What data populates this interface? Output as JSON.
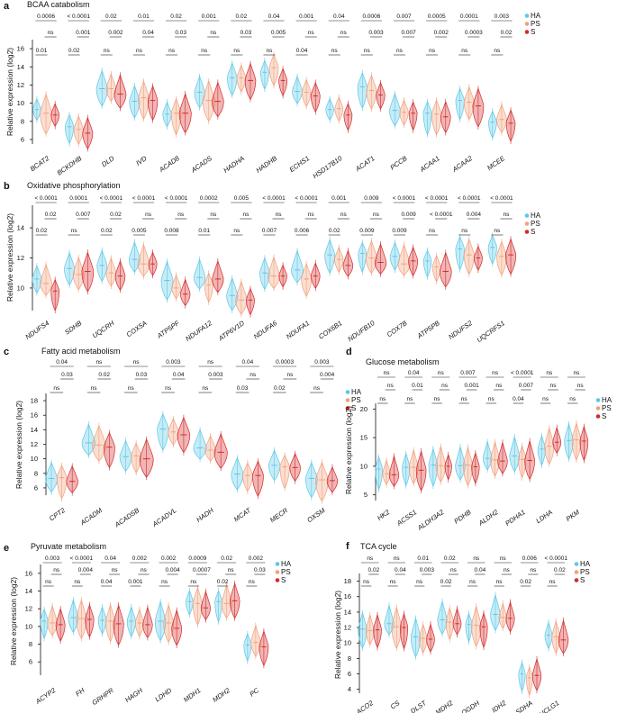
{
  "legend": {
    "groups": [
      "HA",
      "PS",
      "S"
    ],
    "colors": {
      "HA": "#5cc8e8",
      "PS": "#f2a07b",
      "S": "#d42a2a"
    }
  },
  "ylabel": "Relative expression (log2)",
  "chart_data": [
    {
      "type": "violin",
      "letter": "a",
      "title": "BCAA catabolism",
      "ylim": [
        5.5,
        17
      ],
      "yticks": [
        6,
        8,
        10,
        12,
        14,
        16
      ],
      "categories": [
        "BCAT2",
        "BCKDHB",
        "DLD",
        "IVD",
        "ACAD8",
        "ACADS",
        "HADHA",
        "HADHB",
        "ECHS1",
        "HSD17B10",
        "ACAT1",
        "PCCB",
        "ACAA1",
        "ACAA2",
        "MCEE"
      ],
      "series": [
        {
          "name": "HA",
          "values": [
            9.3,
            7.4,
            11.6,
            10.2,
            8.8,
            11.2,
            12.8,
            13.4,
            11.3,
            9.3,
            11.8,
            9.2,
            8.9,
            10.3,
            7.9
          ]
        },
        {
          "name": "PS",
          "values": [
            8.9,
            7.1,
            11.6,
            10.6,
            8.9,
            10.3,
            12.8,
            13.9,
            11.2,
            9.4,
            11.4,
            9.0,
            8.8,
            10.1,
            8.2
          ]
        },
        {
          "name": "S",
          "values": [
            8.7,
            6.7,
            11.0,
            10.3,
            8.9,
            10.2,
            12.5,
            12.5,
            10.8,
            8.7,
            10.9,
            8.9,
            8.5,
            9.7,
            7.8
          ]
        }
      ],
      "pvalues": {
        "HA_vs_S": [
          "0.0006",
          "< 0.0001",
          "0.02",
          "0.01",
          "0.02",
          "0.001",
          "0.02",
          "0.04",
          "0.001",
          "0.04",
          "0.0006",
          "0.007",
          "0.0005",
          "0.0001",
          "0.003"
        ],
        "PS_vs_S": [
          "ns",
          "0.001",
          "0.002",
          "0.04",
          "0.03",
          "ns",
          "0.03",
          "0.005",
          "ns",
          "ns",
          "0.003",
          "0.007",
          "0.002",
          "0.0003",
          "0.02"
        ],
        "HA_vs_PS": [
          "0.01",
          "0.02",
          "ns",
          "ns",
          "ns",
          "ns",
          "ns",
          "ns",
          "0.04",
          "ns",
          "ns",
          "ns",
          "ns",
          "ns",
          "ns"
        ]
      }
    },
    {
      "type": "violin",
      "letter": "b",
      "title": "Oxidative phosphorylation",
      "ylim": [
        8.5,
        15.5
      ],
      "yticks": [
        10,
        12,
        14
      ],
      "categories": [
        "NDUFS4",
        "SDHB",
        "UQCRH",
        "COX5A",
        "ATP5PF",
        "NDUFA12",
        "ATP6V1D",
        "NDUFA6",
        "NDUFA1",
        "COX6B1",
        "NDUFB10",
        "COX7B",
        "ATP5PB",
        "NDUFS2",
        "UQCRFS1"
      ],
      "series": [
        {
          "name": "HA",
          "values": [
            10.6,
            11.3,
            11.5,
            11.9,
            10.5,
            10.7,
            9.5,
            11.0,
            11.2,
            12.2,
            12.3,
            12.1,
            11.8,
            12.6,
            12.7
          ]
        },
        {
          "name": "PS",
          "values": [
            10.3,
            10.9,
            11.0,
            11.6,
            10.0,
            10.2,
            9.2,
            10.8,
            10.6,
            11.9,
            12.0,
            11.6,
            11.4,
            12.2,
            12.1
          ]
        },
        {
          "name": "S",
          "values": [
            9.8,
            11.1,
            10.8,
            11.6,
            9.6,
            10.6,
            9.2,
            10.8,
            10.8,
            11.5,
            11.7,
            11.8,
            11.1,
            12.0,
            12.2
          ]
        }
      ],
      "pvalues": {
        "HA_vs_S": [
          "< 0.0001",
          "0.0001",
          "< 0.0001",
          "< 0.0001",
          "< 0.0001",
          "0.0002",
          "0.005",
          "< 0.0001",
          "< 0.0001",
          "0.001",
          "0.009",
          "< 0.0001",
          "< 0.0001",
          "< 0.0001",
          "< 0.0001"
        ],
        "PS_vs_S": [
          "0.02",
          "0.007",
          "0.02",
          "ns",
          "ns",
          "ns",
          "ns",
          "ns",
          "ns",
          "ns",
          "ns",
          "0.009",
          "< 0.0001",
          "0.004",
          "ns"
        ],
        "HA_vs_PS": [
          "0.02",
          "ns",
          "0.02",
          "0.005",
          "0.008",
          "0.01",
          "ns",
          "0.007",
          "0.006",
          "0.02",
          "0.009",
          "0.009",
          "ns",
          "ns",
          "ns"
        ]
      }
    },
    {
      "type": "violin",
      "letter": "c",
      "title": "Fatty acid metabolism",
      "ylim": [
        5,
        19
      ],
      "yticks": [
        6,
        8,
        10,
        12,
        14,
        16,
        18
      ],
      "categories": [
        "CPT2",
        "ACADM",
        "ACADSB",
        "ACADVL",
        "HADH",
        "MCAT",
        "MECR",
        "OXSM"
      ],
      "series": [
        {
          "name": "HA",
          "values": [
            7.3,
            12.2,
            10.3,
            14.1,
            11.5,
            7.9,
            9.1,
            7.3
          ]
        },
        {
          "name": "PS",
          "values": [
            7.4,
            11.9,
            10.4,
            13.7,
            11.2,
            7.7,
            8.9,
            7.1
          ]
        },
        {
          "name": "S",
          "values": [
            6.9,
            11.6,
            10.0,
            13.3,
            10.9,
            7.7,
            8.8,
            7.0
          ]
        }
      ],
      "pvalues": {
        "HA_vs_S": [
          "0.04",
          "ns",
          "ns",
          "0.003",
          "ns",
          "0.04",
          "0.0003",
          "0.003"
        ],
        "PS_vs_S": [
          "0.03",
          "0.02",
          "0.03",
          "0.04",
          "0.003",
          "ns",
          "ns",
          "0.004"
        ],
        "HA_vs_PS": [
          "ns",
          "ns",
          "ns",
          "ns",
          "ns",
          "0.03",
          "0.02",
          "ns"
        ]
      }
    },
    {
      "type": "violin",
      "letter": "d",
      "title": "Glucose metabolism",
      "ylim": [
        4,
        21
      ],
      "yticks": [
        5,
        10,
        15,
        20
      ],
      "categories": [
        "HK2",
        "ACSS1",
        "ALDH3A2",
        "PDHB",
        "ALDH2",
        "PDHA1",
        "LDHA",
        "PKM"
      ],
      "series": [
        {
          "name": "HA",
          "values": [
            9.5,
            9.8,
            10.2,
            10.1,
            11.4,
            11.8,
            13.0,
            14.5
          ]
        },
        {
          "name": "PS",
          "values": [
            8.7,
            9.8,
            10.1,
            10.2,
            11.1,
            11.2,
            13.5,
            14.6
          ]
        },
        {
          "name": "S",
          "values": [
            8.5,
            9.3,
            10.0,
            9.9,
            10.9,
            11.0,
            14.2,
            14.4
          ]
        }
      ],
      "pvalues": {
        "HA_vs_S": [
          "ns",
          "0.04",
          "ns",
          "0.007",
          "ns",
          "< 0.0001",
          "ns",
          "ns"
        ],
        "PS_vs_S": [
          "ns",
          "0.01",
          "ns",
          "0.001",
          "ns",
          "0.007",
          "ns",
          "ns"
        ],
        "HA_vs_PS": [
          "ns",
          "ns",
          "ns",
          "ns",
          "ns",
          "0.04",
          "ns",
          "ns"
        ]
      }
    },
    {
      "type": "violin",
      "letter": "e",
      "title": "Pyruvate metabolism",
      "ylim": [
        4.5,
        17
      ],
      "yticks": [
        6,
        8,
        10,
        12,
        14,
        16
      ],
      "categories": [
        "ACYP2",
        "FH",
        "GRHPR",
        "HAGH",
        "LDHD",
        "MDH1",
        "MDH2",
        "PC"
      ],
      "series": [
        {
          "name": "HA",
          "values": [
            10.6,
            11.0,
            10.7,
            10.6,
            10.6,
            12.8,
            12.8,
            7.9
          ]
        },
        {
          "name": "PS",
          "values": [
            10.4,
            10.9,
            10.6,
            10.4,
            10.4,
            12.6,
            12.6,
            8.2
          ]
        },
        {
          "name": "S",
          "values": [
            10.2,
            10.8,
            10.3,
            10.2,
            9.8,
            12.1,
            12.9,
            7.7
          ]
        }
      ],
      "pvalues": {
        "HA_vs_S": [
          "0.003",
          "< 0.0001",
          "0.04",
          "0.002",
          "0.002",
          "0.0009",
          "0.02",
          "0.002"
        ],
        "PS_vs_S": [
          "ns",
          "0.004",
          "ns",
          "ns",
          "0.004",
          "0.0007",
          "ns",
          "0.03"
        ],
        "HA_vs_PS": [
          "ns",
          "ns",
          "0.04",
          "0.001",
          "ns",
          "ns",
          "0.02",
          "ns"
        ]
      }
    },
    {
      "type": "violin",
      "letter": "f",
      "title": "TCA cycle",
      "ylim": [
        3.5,
        19
      ],
      "yticks": [
        4,
        6,
        8,
        10,
        12,
        14,
        16,
        18
      ],
      "categories": [
        "ACO2",
        "CS",
        "DLST",
        "MDH2",
        "OGDH",
        "IDH2",
        "SDHA",
        "SUCLG1"
      ],
      "series": [
        {
          "name": "HA",
          "values": [
            11.8,
            12.5,
            10.8,
            13.0,
            12.4,
            13.7,
            6.0,
            11.0
          ]
        },
        {
          "name": "PS",
          "values": [
            11.6,
            12.1,
            10.6,
            12.7,
            12.3,
            13.3,
            5.5,
            10.8
          ]
        },
        {
          "name": "S",
          "values": [
            11.7,
            12.0,
            10.5,
            12.5,
            12.1,
            13.2,
            5.8,
            10.4
          ]
        }
      ],
      "pvalues": {
        "HA_vs_S": [
          "ns",
          "ns",
          "0.01",
          "0.02",
          "ns",
          "ns",
          "0.006",
          "< 0.0001"
        ],
        "PS_vs_S": [
          "0.02",
          "0.04",
          "0.003",
          "ns",
          "0.04",
          "ns",
          "ns",
          "0.02"
        ],
        "HA_vs_PS": [
          "ns",
          "ns",
          "ns",
          "0.02",
          "ns",
          "ns",
          "0.02",
          "ns"
        ]
      }
    }
  ]
}
